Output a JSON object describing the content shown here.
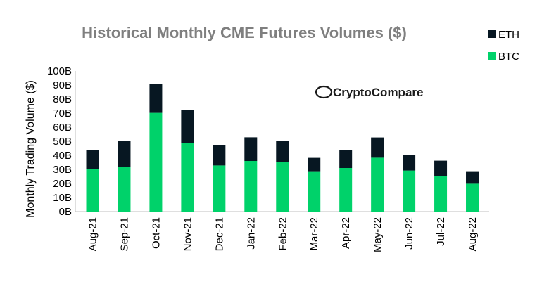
{
  "chart_data": {
    "type": "bar",
    "stacked": true,
    "title": "Historical Monthly CME Futures Volumes ($)",
    "xlabel": "",
    "ylabel": "Monthly Trading Volume ($)",
    "ylim": [
      0,
      100
    ],
    "yticks": [
      "0B",
      "10B",
      "20B",
      "30B",
      "40B",
      "50B",
      "60B",
      "70B",
      "80B",
      "90B",
      "100B"
    ],
    "grid": false,
    "legend_position": "top-right",
    "watermark": "CryptoCompare",
    "categories": [
      "Aug-21",
      "Sep-21",
      "Oct-21",
      "Nov-21",
      "Dec-21",
      "Jan-22",
      "Feb-22",
      "Mar-22",
      "Apr-22",
      "May-22",
      "Jun-22",
      "Jul-22",
      "Aug-22"
    ],
    "series": [
      {
        "name": "BTC",
        "color": "#00d26a",
        "values": [
          30,
          31.7,
          70.2,
          48.7,
          32.8,
          36,
          35,
          28.7,
          31,
          38.3,
          29.2,
          25.5,
          19.8
        ]
      },
      {
        "name": "ETH",
        "color": "#071722",
        "values": [
          13.7,
          18.5,
          20.8,
          23.3,
          14.4,
          16.8,
          15.3,
          9.5,
          12.7,
          14.4,
          11.1,
          10.7,
          8.9
        ]
      }
    ],
    "legend_order": [
      "ETH",
      "BTC"
    ]
  }
}
